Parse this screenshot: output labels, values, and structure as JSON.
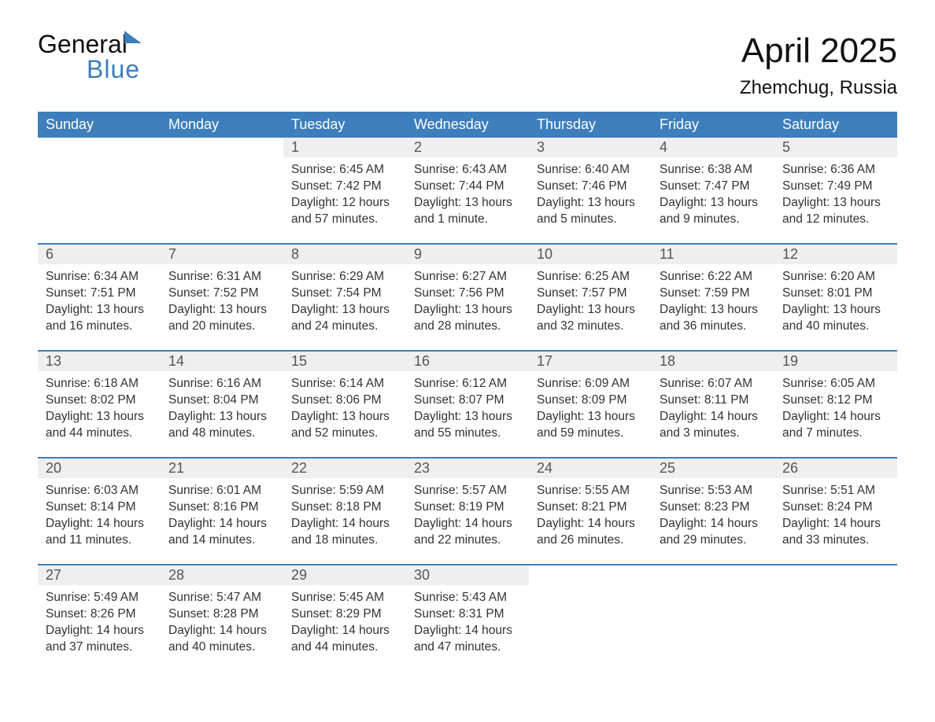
{
  "brand": {
    "word1": "General",
    "word2": "Blue"
  },
  "title": "April 2025",
  "location": "Zhemchug, Russia",
  "colors": {
    "accent": "#3d7ebc",
    "header_bg": "#3d7ebc",
    "daynum_bg": "#efefef",
    "text": "#333333",
    "page_bg": "#ffffff"
  },
  "weekdays": [
    "Sunday",
    "Monday",
    "Tuesday",
    "Wednesday",
    "Thursday",
    "Friday",
    "Saturday"
  ],
  "weeks": [
    [
      null,
      null,
      {
        "n": "1",
        "sunrise": "6:45 AM",
        "sunset": "7:42 PM",
        "daylight": "12 hours and 57 minutes."
      },
      {
        "n": "2",
        "sunrise": "6:43 AM",
        "sunset": "7:44 PM",
        "daylight": "13 hours and 1 minute."
      },
      {
        "n": "3",
        "sunrise": "6:40 AM",
        "sunset": "7:46 PM",
        "daylight": "13 hours and 5 minutes."
      },
      {
        "n": "4",
        "sunrise": "6:38 AM",
        "sunset": "7:47 PM",
        "daylight": "13 hours and 9 minutes."
      },
      {
        "n": "5",
        "sunrise": "6:36 AM",
        "sunset": "7:49 PM",
        "daylight": "13 hours and 12 minutes."
      }
    ],
    [
      {
        "n": "6",
        "sunrise": "6:34 AM",
        "sunset": "7:51 PM",
        "daylight": "13 hours and 16 minutes."
      },
      {
        "n": "7",
        "sunrise": "6:31 AM",
        "sunset": "7:52 PM",
        "daylight": "13 hours and 20 minutes."
      },
      {
        "n": "8",
        "sunrise": "6:29 AM",
        "sunset": "7:54 PM",
        "daylight": "13 hours and 24 minutes."
      },
      {
        "n": "9",
        "sunrise": "6:27 AM",
        "sunset": "7:56 PM",
        "daylight": "13 hours and 28 minutes."
      },
      {
        "n": "10",
        "sunrise": "6:25 AM",
        "sunset": "7:57 PM",
        "daylight": "13 hours and 32 minutes."
      },
      {
        "n": "11",
        "sunrise": "6:22 AM",
        "sunset": "7:59 PM",
        "daylight": "13 hours and 36 minutes."
      },
      {
        "n": "12",
        "sunrise": "6:20 AM",
        "sunset": "8:01 PM",
        "daylight": "13 hours and 40 minutes."
      }
    ],
    [
      {
        "n": "13",
        "sunrise": "6:18 AM",
        "sunset": "8:02 PM",
        "daylight": "13 hours and 44 minutes."
      },
      {
        "n": "14",
        "sunrise": "6:16 AM",
        "sunset": "8:04 PM",
        "daylight": "13 hours and 48 minutes."
      },
      {
        "n": "15",
        "sunrise": "6:14 AM",
        "sunset": "8:06 PM",
        "daylight": "13 hours and 52 minutes."
      },
      {
        "n": "16",
        "sunrise": "6:12 AM",
        "sunset": "8:07 PM",
        "daylight": "13 hours and 55 minutes."
      },
      {
        "n": "17",
        "sunrise": "6:09 AM",
        "sunset": "8:09 PM",
        "daylight": "13 hours and 59 minutes."
      },
      {
        "n": "18",
        "sunrise": "6:07 AM",
        "sunset": "8:11 PM",
        "daylight": "14 hours and 3 minutes."
      },
      {
        "n": "19",
        "sunrise": "6:05 AM",
        "sunset": "8:12 PM",
        "daylight": "14 hours and 7 minutes."
      }
    ],
    [
      {
        "n": "20",
        "sunrise": "6:03 AM",
        "sunset": "8:14 PM",
        "daylight": "14 hours and 11 minutes."
      },
      {
        "n": "21",
        "sunrise": "6:01 AM",
        "sunset": "8:16 PM",
        "daylight": "14 hours and 14 minutes."
      },
      {
        "n": "22",
        "sunrise": "5:59 AM",
        "sunset": "8:18 PM",
        "daylight": "14 hours and 18 minutes."
      },
      {
        "n": "23",
        "sunrise": "5:57 AM",
        "sunset": "8:19 PM",
        "daylight": "14 hours and 22 minutes."
      },
      {
        "n": "24",
        "sunrise": "5:55 AM",
        "sunset": "8:21 PM",
        "daylight": "14 hours and 26 minutes."
      },
      {
        "n": "25",
        "sunrise": "5:53 AM",
        "sunset": "8:23 PM",
        "daylight": "14 hours and 29 minutes."
      },
      {
        "n": "26",
        "sunrise": "5:51 AM",
        "sunset": "8:24 PM",
        "daylight": "14 hours and 33 minutes."
      }
    ],
    [
      {
        "n": "27",
        "sunrise": "5:49 AM",
        "sunset": "8:26 PM",
        "daylight": "14 hours and 37 minutes."
      },
      {
        "n": "28",
        "sunrise": "5:47 AM",
        "sunset": "8:28 PM",
        "daylight": "14 hours and 40 minutes."
      },
      {
        "n": "29",
        "sunrise": "5:45 AM",
        "sunset": "8:29 PM",
        "daylight": "14 hours and 44 minutes."
      },
      {
        "n": "30",
        "sunrise": "5:43 AM",
        "sunset": "8:31 PM",
        "daylight": "14 hours and 47 minutes."
      },
      null,
      null,
      null
    ]
  ],
  "labels": {
    "sunrise": "Sunrise:",
    "sunset": "Sunset:",
    "daylight": "Daylight:"
  }
}
